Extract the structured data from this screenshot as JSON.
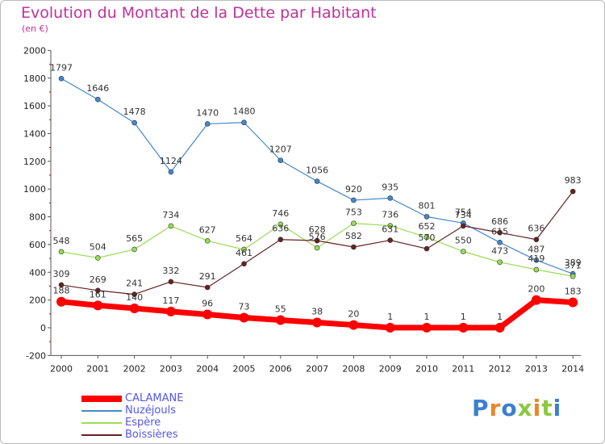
{
  "title": "Evolution du Montant de la Dette par Habitant",
  "subtitle": "(en €)",
  "logo": "Proxiti",
  "chart_data": {
    "type": "line",
    "title": "Evolution du Montant de la Dette par Habitant",
    "subtitle": "(en €)",
    "xlabel": "",
    "ylabel": "",
    "ylim": [
      -200,
      2000
    ],
    "yticks": [
      -200,
      0,
      200,
      400,
      600,
      800,
      1000,
      1200,
      1400,
      1600,
      1800,
      2000
    ],
    "grid": false,
    "legend_position": "bottom-left",
    "categories": [
      "2000",
      "2001",
      "2002",
      "2003",
      "2004",
      "2005",
      "2006",
      "2007",
      "2008",
      "2009",
      "2010",
      "2011",
      "2012",
      "2013",
      "2014"
    ],
    "series": [
      {
        "name": "CALAMANE",
        "color": "#ff0000",
        "label_color": "#333333",
        "values": [
          188,
          161,
          140,
          117,
          96,
          73,
          55,
          38,
          20,
          1,
          1,
          1,
          1,
          200,
          183
        ]
      },
      {
        "name": "Nuzéjouls",
        "color": "#4488cc",
        "label_color": "#333333",
        "values": [
          1797,
          1646,
          1478,
          1124,
          1470,
          1480,
          1207,
          1056,
          920,
          935,
          801,
          754,
          615,
          487,
          389
        ]
      },
      {
        "name": "Espère",
        "color": "#99dd55",
        "label_color": "#333333",
        "values": [
          548,
          504,
          565,
          734,
          627,
          564,
          746,
          576,
          753,
          736,
          652,
          550,
          473,
          419,
          371
        ]
      },
      {
        "name": "Boissières",
        "color": "#662222",
        "label_color": "#333333",
        "values": [
          309,
          269,
          241,
          332,
          291,
          461,
          636,
          628,
          582,
          631,
          570,
          734,
          686,
          636,
          983
        ]
      }
    ]
  },
  "legend": [
    {
      "name": "CALAMANE",
      "color": "#ff0000",
      "text_color": "#5555ee"
    },
    {
      "name": "Nuzéjouls",
      "color": "#4488cc",
      "text_color": "#5555ee"
    },
    {
      "name": "Espère",
      "color": "#99dd55",
      "text_color": "#5555ee"
    },
    {
      "name": "Boissières",
      "color": "#662222",
      "text_color": "#5555ee"
    }
  ],
  "logo_colors": [
    "#3a7fd0",
    "#e9862a",
    "#3a7fd0",
    "#8bc83f",
    "#e9862a",
    "#8bc83f",
    "#3a7fd0"
  ]
}
